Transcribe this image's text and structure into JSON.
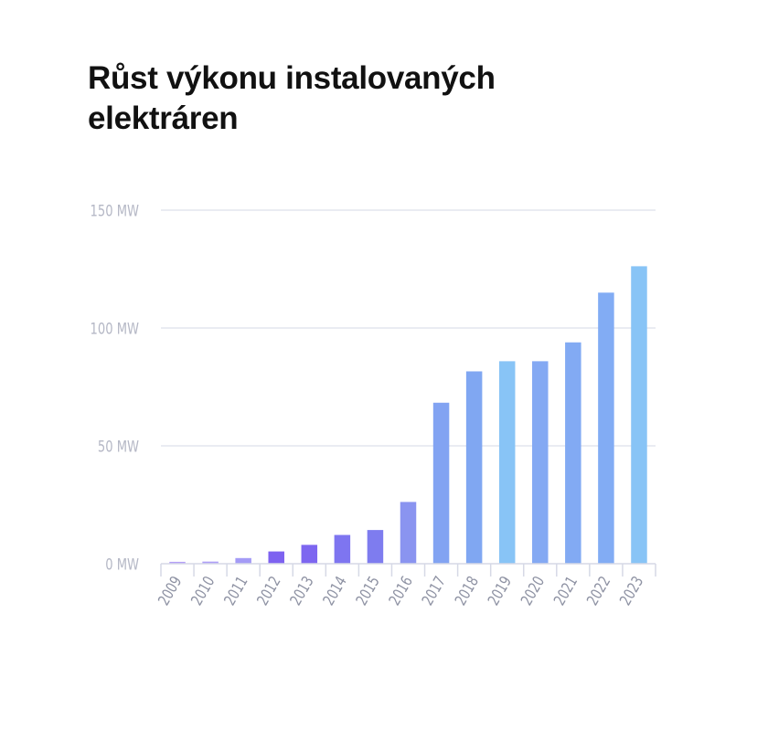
{
  "chart_data": {
    "type": "bar",
    "title_lines": [
      "Růst výkonu instalovaných",
      "elektráren"
    ],
    "categories": [
      "2009",
      "2010",
      "2011",
      "2012",
      "2013",
      "2014",
      "2015",
      "2016",
      "2017",
      "2018",
      "2019",
      "2020",
      "2021",
      "2022",
      "2023"
    ],
    "values": [
      0.8,
      0.9,
      2.4,
      5.2,
      8.0,
      12.2,
      14.3,
      26.2,
      68.3,
      81.6,
      85.9,
      85.9,
      93.9,
      115.0,
      126.2
    ],
    "colors": [
      "#b39ef7",
      "#ad9ef7",
      "#a49bf6",
      "#7d62f0",
      "#7d66f0",
      "#7e75f0",
      "#7e7cef",
      "#8a94f0",
      "#82a3f2",
      "#80a7f2",
      "#88c4f6",
      "#84a9f3",
      "#82aaf3",
      "#82acf4",
      "#88c4f6"
    ],
    "y_tick_labels": [
      "0 MW",
      "50 MW",
      "100 MW",
      "150 MW"
    ],
    "y_tick_values": [
      0,
      50,
      100,
      150
    ],
    "ylim": [
      0,
      150
    ],
    "grid": true,
    "xlabel": "",
    "ylabel": ""
  }
}
